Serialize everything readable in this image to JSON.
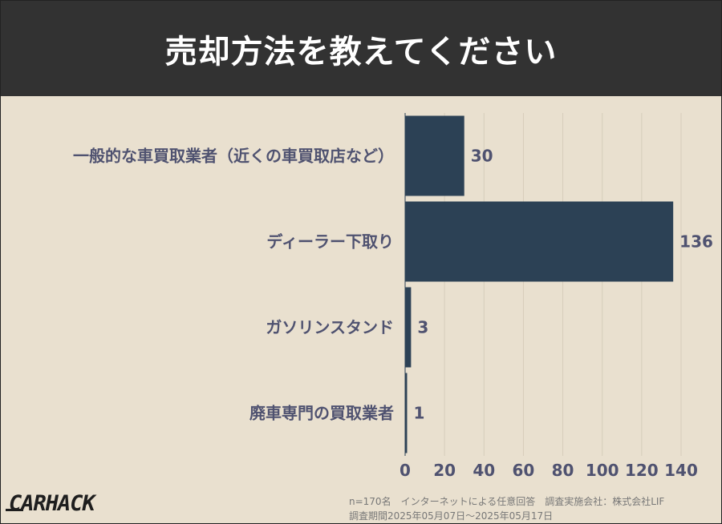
{
  "title": "売却方法を教えてください",
  "chart_data": {
    "type": "bar",
    "orientation": "horizontal",
    "categories": [
      "一般的な車買取業者（近くの車買取店など）",
      "ディーラー下取り",
      "ガソリンスタンド",
      "廃車専門の買取業者"
    ],
    "values": [
      30,
      136,
      3,
      1
    ],
    "xlim": [
      0,
      140
    ],
    "xticks": [
      0,
      20,
      40,
      60,
      80,
      100,
      120,
      140
    ],
    "grid": true,
    "bar_color": "#2c4155"
  },
  "footer": {
    "logo": "CARHACK",
    "note1": "n=170名　インターネットによる任意回答　調査実施会社：株式会社LIF",
    "note2": "調査期間2025年05月07日〜2025年05月17日"
  }
}
